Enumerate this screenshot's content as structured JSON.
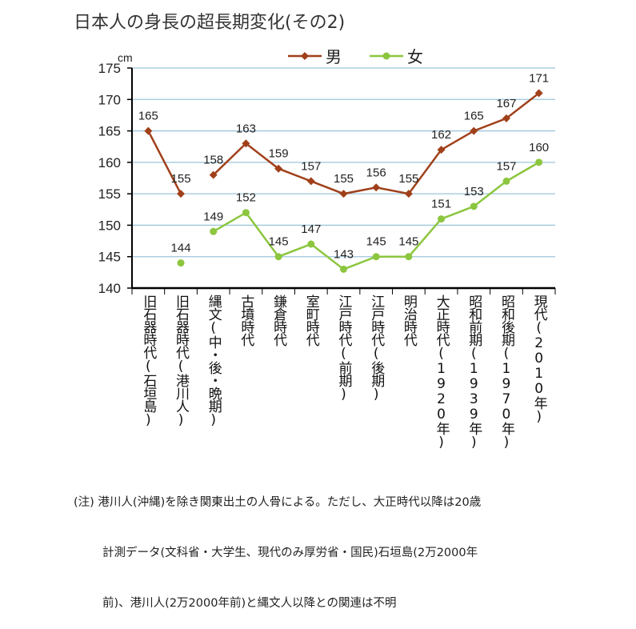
{
  "title": "日本人の身長の超長期変化(その2)",
  "chart_data": {
    "type": "line",
    "yunit": "cm",
    "ylim": [
      140,
      175
    ],
    "yticks": [
      140,
      145,
      150,
      155,
      160,
      165,
      170,
      175
    ],
    "grid": true,
    "legend_position": "top-center",
    "categories": [
      "旧石器時代(石垣島)",
      "旧石器時代(港川人)",
      "縄文(中・後・晩期)",
      "古墳時代",
      "鎌倉時代",
      "室町時代",
      "江戸時代(前期)",
      "江戸時代(後期)",
      "明治時代",
      "大正時代(1920年)",
      "昭和前期(1939年)",
      "昭和後期(1970年)",
      "現代(2010年)"
    ],
    "series": [
      {
        "name": "男",
        "color": "#a0401a",
        "marker": "diamond",
        "values": [
          165,
          155,
          158,
          163,
          159,
          157,
          155,
          156,
          155,
          162,
          165,
          167,
          171
        ],
        "connected_ranges": [
          [
            0,
            1
          ],
          [
            2,
            12
          ]
        ]
      },
      {
        "name": "女",
        "color": "#8cc63f",
        "marker": "circle",
        "values": [
          null,
          144,
          149,
          152,
          145,
          147,
          143,
          145,
          145,
          151,
          153,
          157,
          160
        ],
        "connected_ranges": [
          [
            1,
            1
          ],
          [
            2,
            12
          ]
        ]
      }
    ]
  },
  "note": [
    "(注) 港川人(沖縄)を除き関東出土の人骨による。ただし、大正時代以降は20歳",
    "計測データ(文科省・大学生、現代のみ厚労省・国民)石垣島(2万2000年",
    "前)、港川人(2万2000年前)と縄文人以降との関連は不明"
  ]
}
